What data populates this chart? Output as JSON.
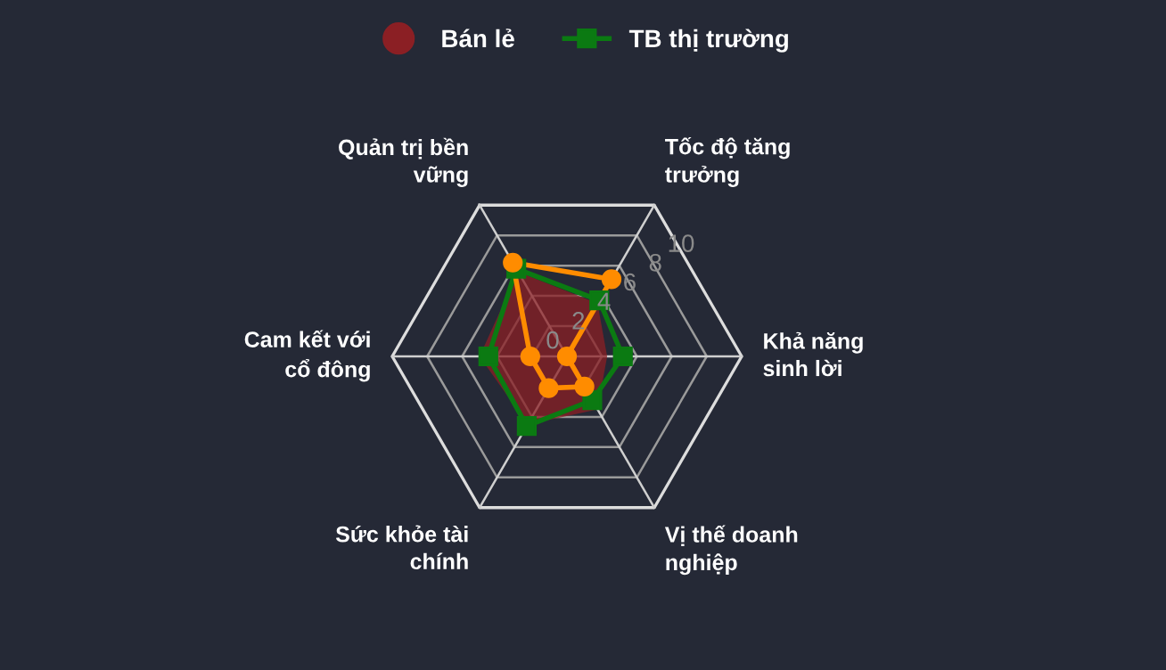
{
  "chart_data": {
    "type": "radar",
    "categories": [
      "Quản trị bền\nvững",
      "Tốc độ tăng\ntrưởng",
      "Khả năng\nsinh lời",
      "Vị thế doanh\nnghiệp",
      "Sức khỏe tài\nchính",
      "Cam kết với\ncổ đông"
    ],
    "ylim": [
      0,
      10
    ],
    "yticks": [
      0,
      2,
      4,
      6,
      8,
      10
    ],
    "legend": "top",
    "series": [
      {
        "type": "area",
        "name": "Bán lẻ",
        "color": "#8b1f24",
        "marker": "none",
        "values": [
          5.6,
          3.5,
          2.3,
          3.5,
          4.5,
          5.0
        ]
      },
      {
        "color": "#0b7a12",
        "name": "TB thị trường",
        "marker": "square",
        "values": [
          5.8,
          3.7,
          3.2,
          2.9,
          4.6,
          4.5
        ]
      },
      {
        "color": "#ff8c00",
        "marker": "circle",
        "values": [
          6.2,
          5.1,
          0,
          2.0,
          2.1,
          2.1
        ]
      }
    ]
  }
}
